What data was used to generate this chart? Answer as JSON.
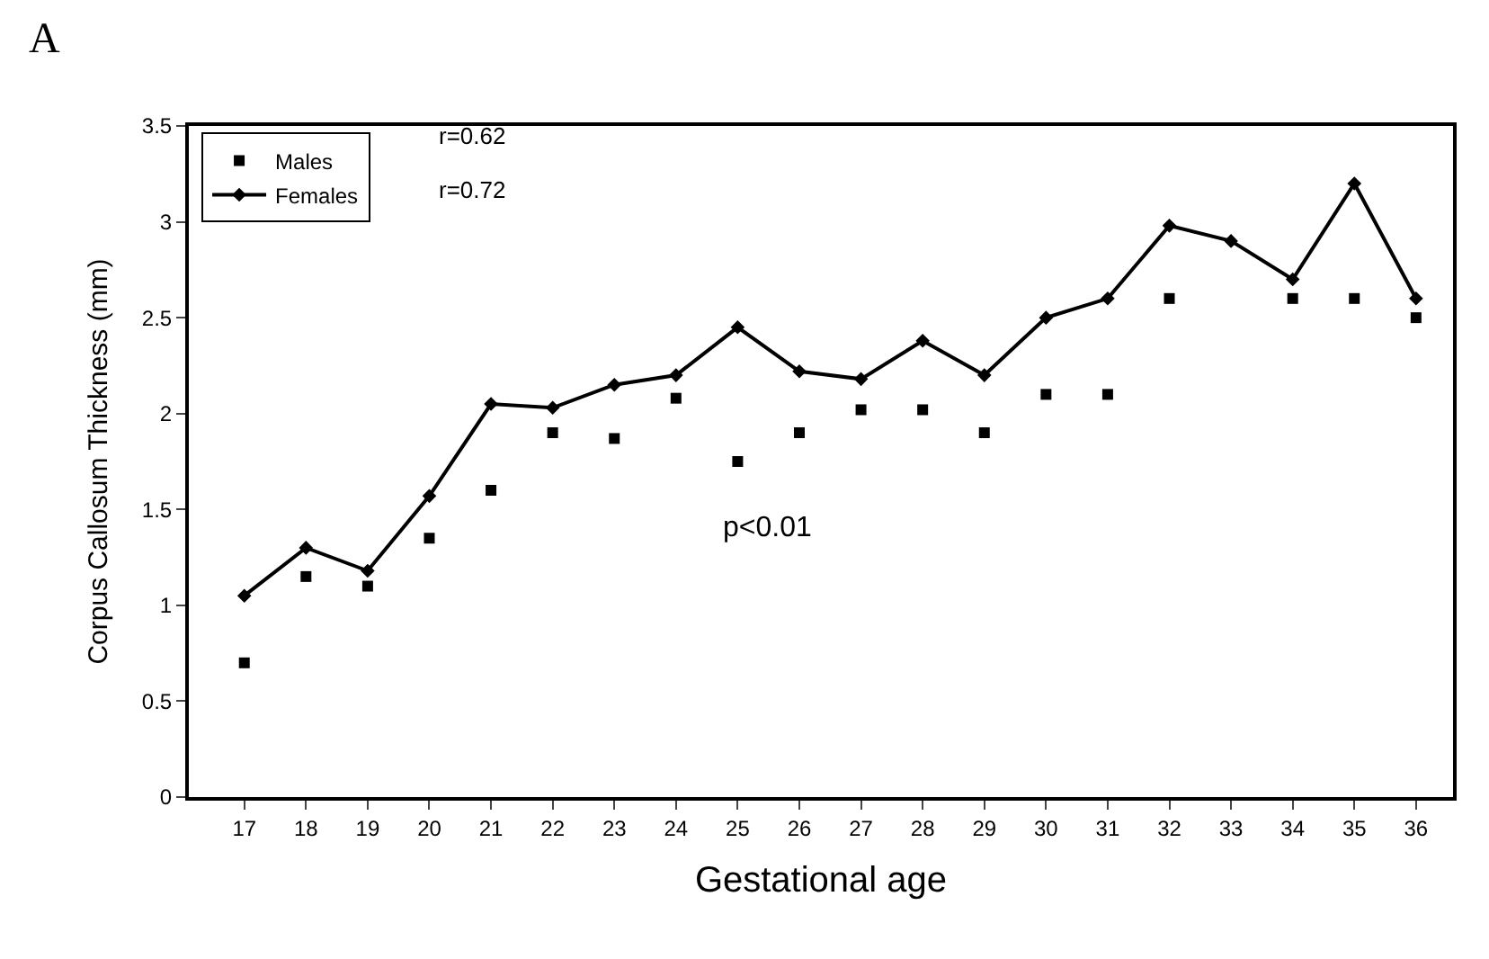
{
  "chart_data": {
    "type": "line",
    "xlabel": "Gestational age",
    "ylabel": "Corpus Callosum Thickness (mm)",
    "categories": [
      "17",
      "18",
      "19",
      "20",
      "21",
      "22",
      "23",
      "24",
      "25",
      "26",
      "27",
      "28",
      "29",
      "30",
      "31",
      "32",
      "33",
      "34",
      "35",
      "36"
    ],
    "series": [
      {
        "name": "Males",
        "type": "scatter",
        "marker": "square",
        "color": "#000000",
        "values": [
          0.7,
          1.15,
          1.1,
          1.35,
          1.6,
          1.9,
          1.87,
          2.08,
          1.75,
          1.9,
          2.02,
          2.02,
          1.9,
          2.1,
          2.1,
          2.6,
          null,
          2.6,
          2.6,
          2.5
        ]
      },
      {
        "name": "Females",
        "marker": "diamond",
        "line_style": "solid",
        "color": "#000000",
        "values": [
          1.05,
          1.3,
          1.18,
          1.57,
          2.05,
          2.03,
          2.15,
          2.2,
          2.45,
          2.22,
          2.18,
          2.38,
          2.2,
          2.5,
          2.6,
          2.98,
          2.9,
          2.7,
          3.2,
          2.6
        ]
      }
    ],
    "ylim": [
      0,
      3.5
    ],
    "yticks": [
      0,
      0.5,
      1,
      1.5,
      2,
      2.5,
      3,
      3.5
    ],
    "legend": "top left",
    "annotations": [
      "A",
      "r=0.62",
      "r=0.72",
      "p<0.01"
    ]
  }
}
